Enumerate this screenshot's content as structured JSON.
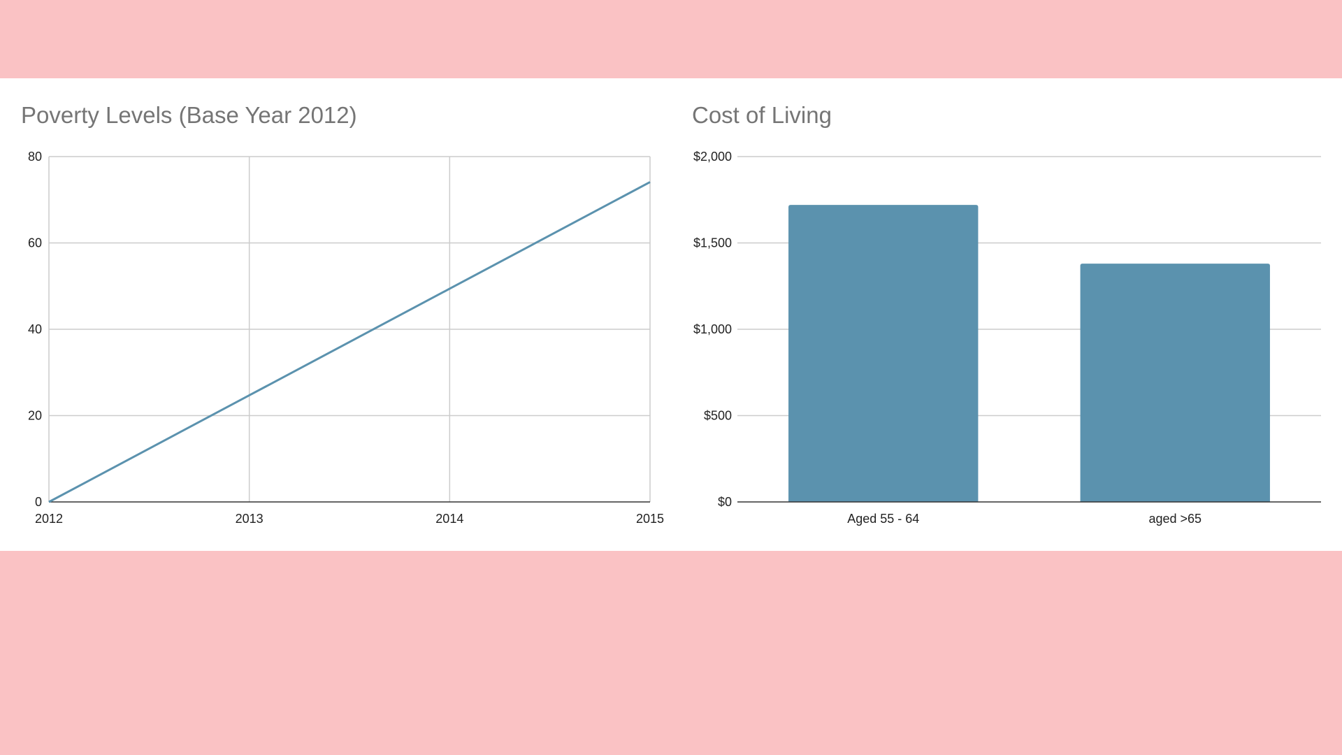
{
  "background_color": "#fac2c4",
  "series_color": "#5b92ae",
  "chart_data": [
    {
      "type": "line",
      "title": "Poverty Levels (Base Year 2012)",
      "xlabel": "",
      "ylabel": "",
      "x": [
        2012,
        2013,
        2014,
        2015
      ],
      "x_tick_labels": [
        "2012",
        "2013",
        "2014",
        "2015"
      ],
      "y_tick_labels": [
        "0",
        "20",
        "40",
        "60",
        "80"
      ],
      "series": [
        {
          "values": [
            0,
            24.7,
            49.4,
            74.1
          ]
        }
      ],
      "xlim": [
        2012,
        2015
      ],
      "ylim": [
        0,
        80
      ],
      "grid": true,
      "legend": "none"
    },
    {
      "type": "bar",
      "title": "Cost of Living",
      "xlabel": "",
      "ylabel": "",
      "categories": [
        "Aged 55 - 64",
        "aged >65"
      ],
      "values": [
        1720,
        1380
      ],
      "y_tick_labels": [
        "$0",
        "$500",
        "$1,000",
        "$1,500",
        "$2,000"
      ],
      "ylim": [
        0,
        2000
      ],
      "grid": true,
      "legend": "none"
    }
  ]
}
